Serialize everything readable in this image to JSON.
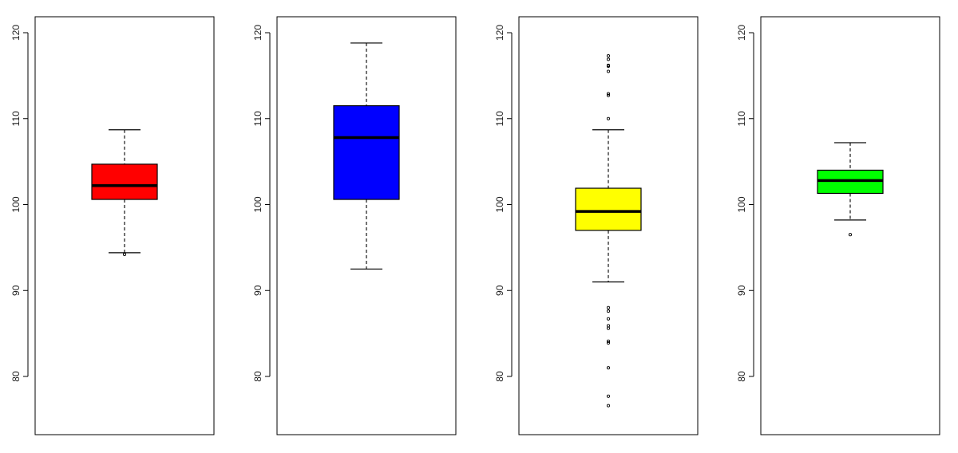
{
  "chart_data": [
    {
      "type": "box",
      "color": "#ff0000",
      "y_ticks": [
        "80",
        "90",
        "100",
        "110",
        "120"
      ],
      "ylim": [
        73,
        122
      ],
      "stats": {
        "whisker_low": 94.4,
        "q1": 100.6,
        "median": 102.2,
        "q3": 104.7,
        "whisker_high": 108.7
      },
      "outliers": [
        94.2
      ]
    },
    {
      "type": "box",
      "color": "#0000ff",
      "y_ticks": [
        "80",
        "90",
        "100",
        "110",
        "120"
      ],
      "ylim": [
        73,
        122
      ],
      "stats": {
        "whisker_low": 92.5,
        "q1": 100.6,
        "median": 107.8,
        "q3": 111.5,
        "whisker_high": 118.8
      },
      "outliers": []
    },
    {
      "type": "box",
      "color": "#ffff00",
      "y_ticks": [
        "80",
        "90",
        "100",
        "110",
        "120"
      ],
      "ylim": [
        73,
        122
      ],
      "stats": {
        "whisker_low": 91.0,
        "q1": 97.0,
        "median": 99.2,
        "q3": 101.9,
        "whisker_high": 108.7
      },
      "outliers": [
        117.3,
        116.9,
        116.2,
        116.1,
        115.5,
        112.9,
        112.7,
        110.0,
        88.0,
        87.6,
        86.7,
        85.9,
        85.6,
        84.1,
        83.9,
        81.0,
        77.7,
        76.6
      ]
    },
    {
      "type": "box",
      "color": "#00ff00",
      "y_ticks": [
        "80",
        "90",
        "100",
        "110",
        "120"
      ],
      "ylim": [
        73,
        122
      ],
      "stats": {
        "whisker_low": 98.2,
        "q1": 101.3,
        "median": 102.8,
        "q3": 104.0,
        "whisker_high": 107.2
      },
      "outliers": [
        96.5
      ]
    }
  ]
}
